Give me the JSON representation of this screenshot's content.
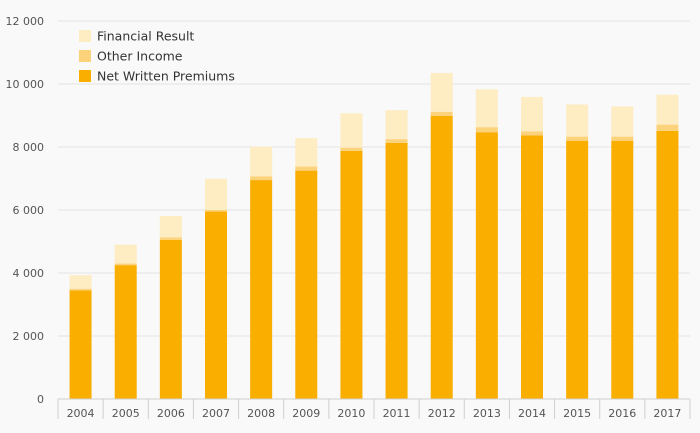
{
  "colors": {
    "background": "#f9f9f9",
    "gridline": "#e3e3e3",
    "axis": "#cfcfcf"
  },
  "chart_data": {
    "type": "bar",
    "stacked": true,
    "categories": [
      "2004",
      "2005",
      "2006",
      "2007",
      "2008",
      "2009",
      "2010",
      "2011",
      "2012",
      "2013",
      "2014",
      "2015",
      "2016",
      "2017"
    ],
    "series": [
      {
        "name": "Net Written Premiums",
        "color": "#f9ae00",
        "values": [
          3450,
          4250,
          5050,
          5950,
          6950,
          7250,
          7880,
          8130,
          8990,
          8470,
          8370,
          8200,
          8200,
          8510
        ]
      },
      {
        "name": "Other Income",
        "color": "#fcd27a",
        "values": [
          50,
          50,
          80,
          50,
          120,
          130,
          100,
          120,
          130,
          160,
          130,
          130,
          130,
          200
        ]
      },
      {
        "name": "Financial Result",
        "color": "#feecc2",
        "values": [
          430,
          600,
          680,
          990,
          940,
          900,
          1090,
          920,
          1230,
          1200,
          1090,
          1020,
          960,
          950
        ]
      }
    ],
    "legend": {
      "position": "top-left",
      "entries": [
        "Financial Result",
        "Other Income",
        "Net Written Premiums"
      ]
    },
    "ylim": [
      0,
      12000
    ],
    "yticks": [
      0,
      2000,
      4000,
      6000,
      8000,
      10000,
      12000
    ],
    "ytick_labels": [
      "0",
      "2 000",
      "4 000",
      "6 000",
      "8 000",
      "10 000",
      "12 000"
    ],
    "grid": true,
    "title": "",
    "xlabel": "",
    "ylabel": ""
  }
}
